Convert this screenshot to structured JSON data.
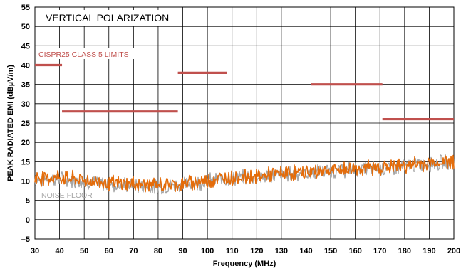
{
  "chart_data": {
    "type": "line",
    "title": "VERTICAL POLARIZATION",
    "xlabel": "Frequency (MHz)",
    "ylabel": "PEAK RADIATED EMI (dBµV/m)",
    "xlim": [
      30,
      200
    ],
    "ylim": [
      -5,
      55
    ],
    "x_ticks": [
      30,
      40,
      50,
      60,
      70,
      80,
      90,
      100,
      110,
      120,
      130,
      140,
      150,
      160,
      170,
      180,
      190,
      200
    ],
    "y_ticks": [
      -5,
      0,
      5,
      10,
      15,
      20,
      25,
      30,
      35,
      40,
      45,
      50,
      55
    ],
    "grid": true,
    "limits": {
      "label": "CISPR25 CLASS 5 LIMITS",
      "color": "#c0504d",
      "segments": [
        {
          "x": [
            30,
            41
          ],
          "y": 40
        },
        {
          "x": [
            41,
            88
          ],
          "y": 28
        },
        {
          "x": [
            88,
            108
          ],
          "y": 38
        },
        {
          "x": [
            142,
            171
          ],
          "y": 35
        },
        {
          "x": [
            171,
            200
          ],
          "y": 26
        }
      ]
    },
    "series": [
      {
        "name": "NOISE FLOOR",
        "color": "#a6a6a6",
        "x": [
          30,
          40,
          50,
          60,
          70,
          80,
          90,
          100,
          110,
          120,
          130,
          140,
          150,
          160,
          170,
          180,
          190,
          200
        ],
        "values": [
          10.5,
          10.5,
          10,
          9,
          9,
          8.5,
          9,
          10,
          10.8,
          11,
          11.8,
          12,
          12.5,
          13,
          13.3,
          13.8,
          14.5,
          15
        ]
      },
      {
        "name": "",
        "color": "#e46c0a",
        "x": [
          30,
          40,
          50,
          60,
          70,
          80,
          90,
          100,
          110,
          120,
          130,
          140,
          150,
          160,
          170,
          180,
          190,
          200
        ],
        "values": [
          10.8,
          11,
          10.2,
          9.5,
          9.2,
          9,
          9.2,
          10.2,
          11,
          11.2,
          12,
          12.3,
          12.7,
          13.2,
          13.5,
          14,
          14.6,
          15.2
        ]
      }
    ]
  }
}
